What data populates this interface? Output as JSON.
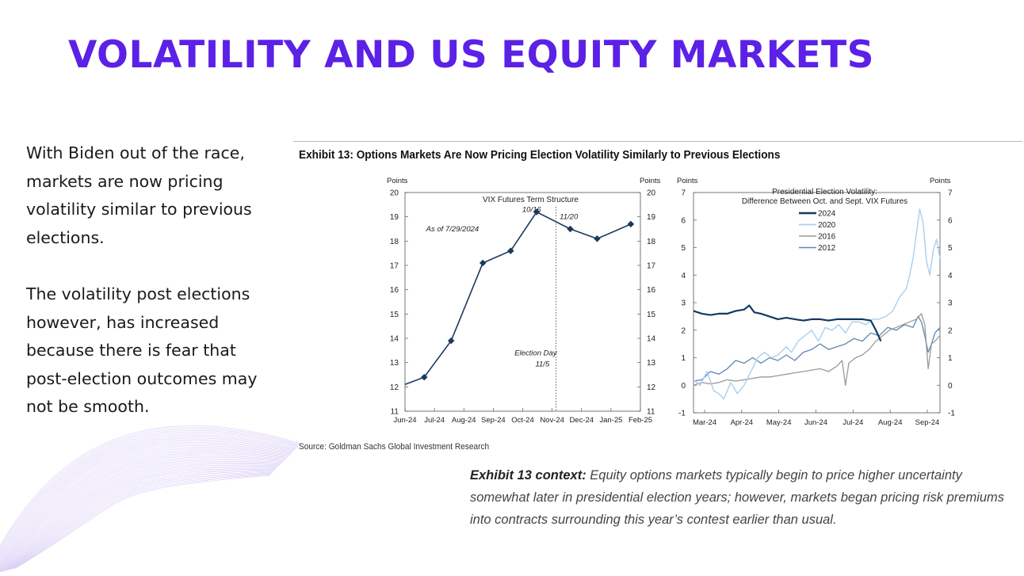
{
  "page": {
    "title": "VOLATILITY AND US EQUITY MARKETS",
    "paragraphs": [
      "With Biden out of the race, markets are now pricing volatility similar to previous elections.",
      "The volatility post elections however, has increased because there is fear that post-election outcomes may not be smooth."
    ],
    "exhibit_title": "Exhibit 13: Options Markets Are Now Pricing Election Volatility Similarly to Previous Elections",
    "source": "Source: Goldman Sachs Global Investment Research",
    "context_label": "Exhibit 13 context:",
    "context_text": " Equity options markets typically begin to price higher uncertainty somewhat later in presidential election years; however, markets began pricing risk premiums into contracts surrounding this year’s contest earlier than usual.",
    "colors": {
      "accent": "#5b21e6"
    }
  },
  "chart_data": [
    {
      "type": "line",
      "title": "VIX Futures Term Structure",
      "ylabel": "Points",
      "ylabel_right": "Points",
      "ylim": [
        11,
        20
      ],
      "yticks": [
        11,
        12,
        13,
        14,
        15,
        16,
        17,
        18,
        19,
        20
      ],
      "categories": [
        "Jun-24",
        "Jul-24",
        "Aug-24",
        "Sep-24",
        "Oct-24",
        "Nov-24",
        "Dec-24",
        "Jan-25",
        "Feb-25"
      ],
      "series": [
        {
          "color": "#1c3a5e",
          "points": [
            {
              "x": "2024-06-01",
              "y": 12.1
            },
            {
              "x": "2024-06-21",
              "y": 12.4
            },
            {
              "x": "2024-07-19",
              "y": 13.9
            },
            {
              "x": "2024-08-21",
              "y": 17.1
            },
            {
              "x": "2024-09-19",
              "y": 17.6
            },
            {
              "x": "2024-10-16",
              "y": 19.2
            },
            {
              "x": "2024-11-20",
              "y": 18.5
            },
            {
              "x": "2024-12-18",
              "y": 18.1
            },
            {
              "x": "2025-01-22",
              "y": 18.7
            }
          ]
        }
      ],
      "annotations": [
        {
          "text": "As of 7/29/2024",
          "x": "2024-06-23",
          "y": 18.4
        },
        {
          "text": "10/16",
          "x": "2024-10-01",
          "y": 19.2
        },
        {
          "text": "11/20",
          "x": "2024-11-09",
          "y": 18.9
        },
        {
          "text": "Election Day",
          "x": "2024-10-15",
          "y": 13.3
        },
        {
          "text": "11/5",
          "x": "2024-10-22",
          "y": 12.85
        }
      ],
      "vline": {
        "x": "2024-11-05",
        "style": "dotted"
      },
      "grid": false,
      "legend": "none"
    },
    {
      "type": "line",
      "title": "Presidential Election Volatility:",
      "subtitle": "Difference Between Oct. and Sept. VIX Futures",
      "ylabel": "Points",
      "ylabel_right": "Points",
      "ylim": [
        -1,
        7
      ],
      "yticks": [
        -1,
        0,
        1,
        2,
        3,
        4,
        5,
        6,
        7
      ],
      "categories": [
        "Mar-24",
        "Apr-24",
        "May-24",
        "Jun-24",
        "Jul-24",
        "Aug-24",
        "Sep-24"
      ],
      "legend": "top-center",
      "grid": false,
      "series": [
        {
          "name": "2024",
          "color": "#123a63",
          "width": 2.2,
          "points": [
            [
              0,
              2.7
            ],
            [
              5,
              2.6
            ],
            [
              10,
              2.55
            ],
            [
              15,
              2.6
            ],
            [
              20,
              2.6
            ],
            [
              25,
              2.7
            ],
            [
              30,
              2.75
            ],
            [
              33,
              2.9
            ],
            [
              36,
              2.65
            ],
            [
              40,
              2.6
            ],
            [
              45,
              2.5
            ],
            [
              50,
              2.4
            ],
            [
              55,
              2.45
            ],
            [
              60,
              2.4
            ],
            [
              65,
              2.35
            ],
            [
              70,
              2.4
            ],
            [
              75,
              2.4
            ],
            [
              80,
              2.35
            ],
            [
              85,
              2.4
            ],
            [
              90,
              2.4
            ],
            [
              95,
              2.4
            ],
            [
              100,
              2.4
            ],
            [
              105,
              2.35
            ],
            [
              108,
              2.0
            ],
            [
              111,
              1.6
            ]
          ]
        },
        {
          "name": "2020",
          "color": "#a9cfee",
          "width": 1.4,
          "points": [
            [
              0,
              0.2
            ],
            [
              4,
              0
            ],
            [
              8,
              0.5
            ],
            [
              12,
              -0.2
            ],
            [
              15,
              -0.3
            ],
            [
              18,
              -0.5
            ],
            [
              22,
              0.1
            ],
            [
              26,
              -0.3
            ],
            [
              30,
              0
            ],
            [
              34,
              0.5
            ],
            [
              38,
              1.0
            ],
            [
              42,
              1.2
            ],
            [
              46,
              1.0
            ],
            [
              50,
              1.1
            ],
            [
              55,
              1.4
            ],
            [
              58,
              1.2
            ],
            [
              62,
              1.6
            ],
            [
              66,
              1.8
            ],
            [
              70,
              2.0
            ],
            [
              74,
              1.6
            ],
            [
              78,
              2.1
            ],
            [
              82,
              2.0
            ],
            [
              86,
              2.2
            ],
            [
              90,
              1.9
            ],
            [
              94,
              2.3
            ],
            [
              98,
              2.3
            ],
            [
              102,
              2.2
            ],
            [
              106,
              2.4
            ],
            [
              110,
              2.4
            ],
            [
              114,
              2.5
            ],
            [
              118,
              2.7
            ],
            [
              122,
              3.2
            ],
            [
              126,
              3.5
            ],
            [
              128,
              4.0
            ],
            [
              130,
              4.6
            ],
            [
              132,
              5.5
            ],
            [
              134,
              6.4
            ],
            [
              136,
              5.9
            ],
            [
              138,
              4.5
            ],
            [
              140,
              4.0
            ],
            [
              142,
              4.9
            ],
            [
              144,
              5.3
            ],
            [
              146,
              4.6
            ]
          ]
        },
        {
          "name": "2016",
          "color": "#9a9a9a",
          "width": 1.3,
          "points": [
            [
              0,
              0
            ],
            [
              5,
              0.1
            ],
            [
              10,
              0.05
            ],
            [
              15,
              0.1
            ],
            [
              20,
              0.2
            ],
            [
              25,
              0.15
            ],
            [
              30,
              0.2
            ],
            [
              35,
              0.25
            ],
            [
              40,
              0.3
            ],
            [
              45,
              0.3
            ],
            [
              50,
              0.35
            ],
            [
              55,
              0.4
            ],
            [
              60,
              0.45
            ],
            [
              65,
              0.5
            ],
            [
              70,
              0.55
            ],
            [
              75,
              0.6
            ],
            [
              80,
              0.5
            ],
            [
              85,
              0.7
            ],
            [
              88,
              0.9
            ],
            [
              90,
              0
            ],
            [
              92,
              0.8
            ],
            [
              96,
              1.0
            ],
            [
              100,
              1.1
            ],
            [
              104,
              1.3
            ],
            [
              108,
              1.6
            ],
            [
              112,
              1.8
            ],
            [
              116,
              2.0
            ],
            [
              120,
              2.1
            ],
            [
              124,
              2.2
            ],
            [
              128,
              2.3
            ],
            [
              132,
              2.4
            ],
            [
              135,
              2.6
            ],
            [
              137,
              2.2
            ],
            [
              139,
              0.6
            ],
            [
              141,
              1.5
            ],
            [
              143,
              1.6
            ],
            [
              146,
              1.8
            ]
          ]
        },
        {
          "name": "2012",
          "color": "#5f87b3",
          "width": 1.3,
          "points": [
            [
              0,
              0.15
            ],
            [
              5,
              0.2
            ],
            [
              10,
              0.5
            ],
            [
              15,
              0.4
            ],
            [
              20,
              0.6
            ],
            [
              25,
              0.9
            ],
            [
              30,
              0.8
            ],
            [
              35,
              1.0
            ],
            [
              40,
              0.8
            ],
            [
              45,
              1.0
            ],
            [
              50,
              0.9
            ],
            [
              55,
              1.1
            ],
            [
              60,
              0.9
            ],
            [
              65,
              1.2
            ],
            [
              70,
              1.3
            ],
            [
              75,
              1.5
            ],
            [
              80,
              1.3
            ],
            [
              85,
              1.4
            ],
            [
              90,
              1.5
            ],
            [
              95,
              1.7
            ],
            [
              100,
              1.6
            ],
            [
              105,
              1.9
            ],
            [
              110,
              1.8
            ],
            [
              115,
              2.1
            ],
            [
              120,
              2.0
            ],
            [
              125,
              2.2
            ],
            [
              130,
              2.1
            ],
            [
              133,
              2.5
            ],
            [
              135,
              2.3
            ],
            [
              137,
              1.8
            ],
            [
              139,
              1.2
            ],
            [
              141,
              1.5
            ],
            [
              143,
              1.9
            ],
            [
              146,
              2.1
            ]
          ]
        }
      ]
    }
  ]
}
